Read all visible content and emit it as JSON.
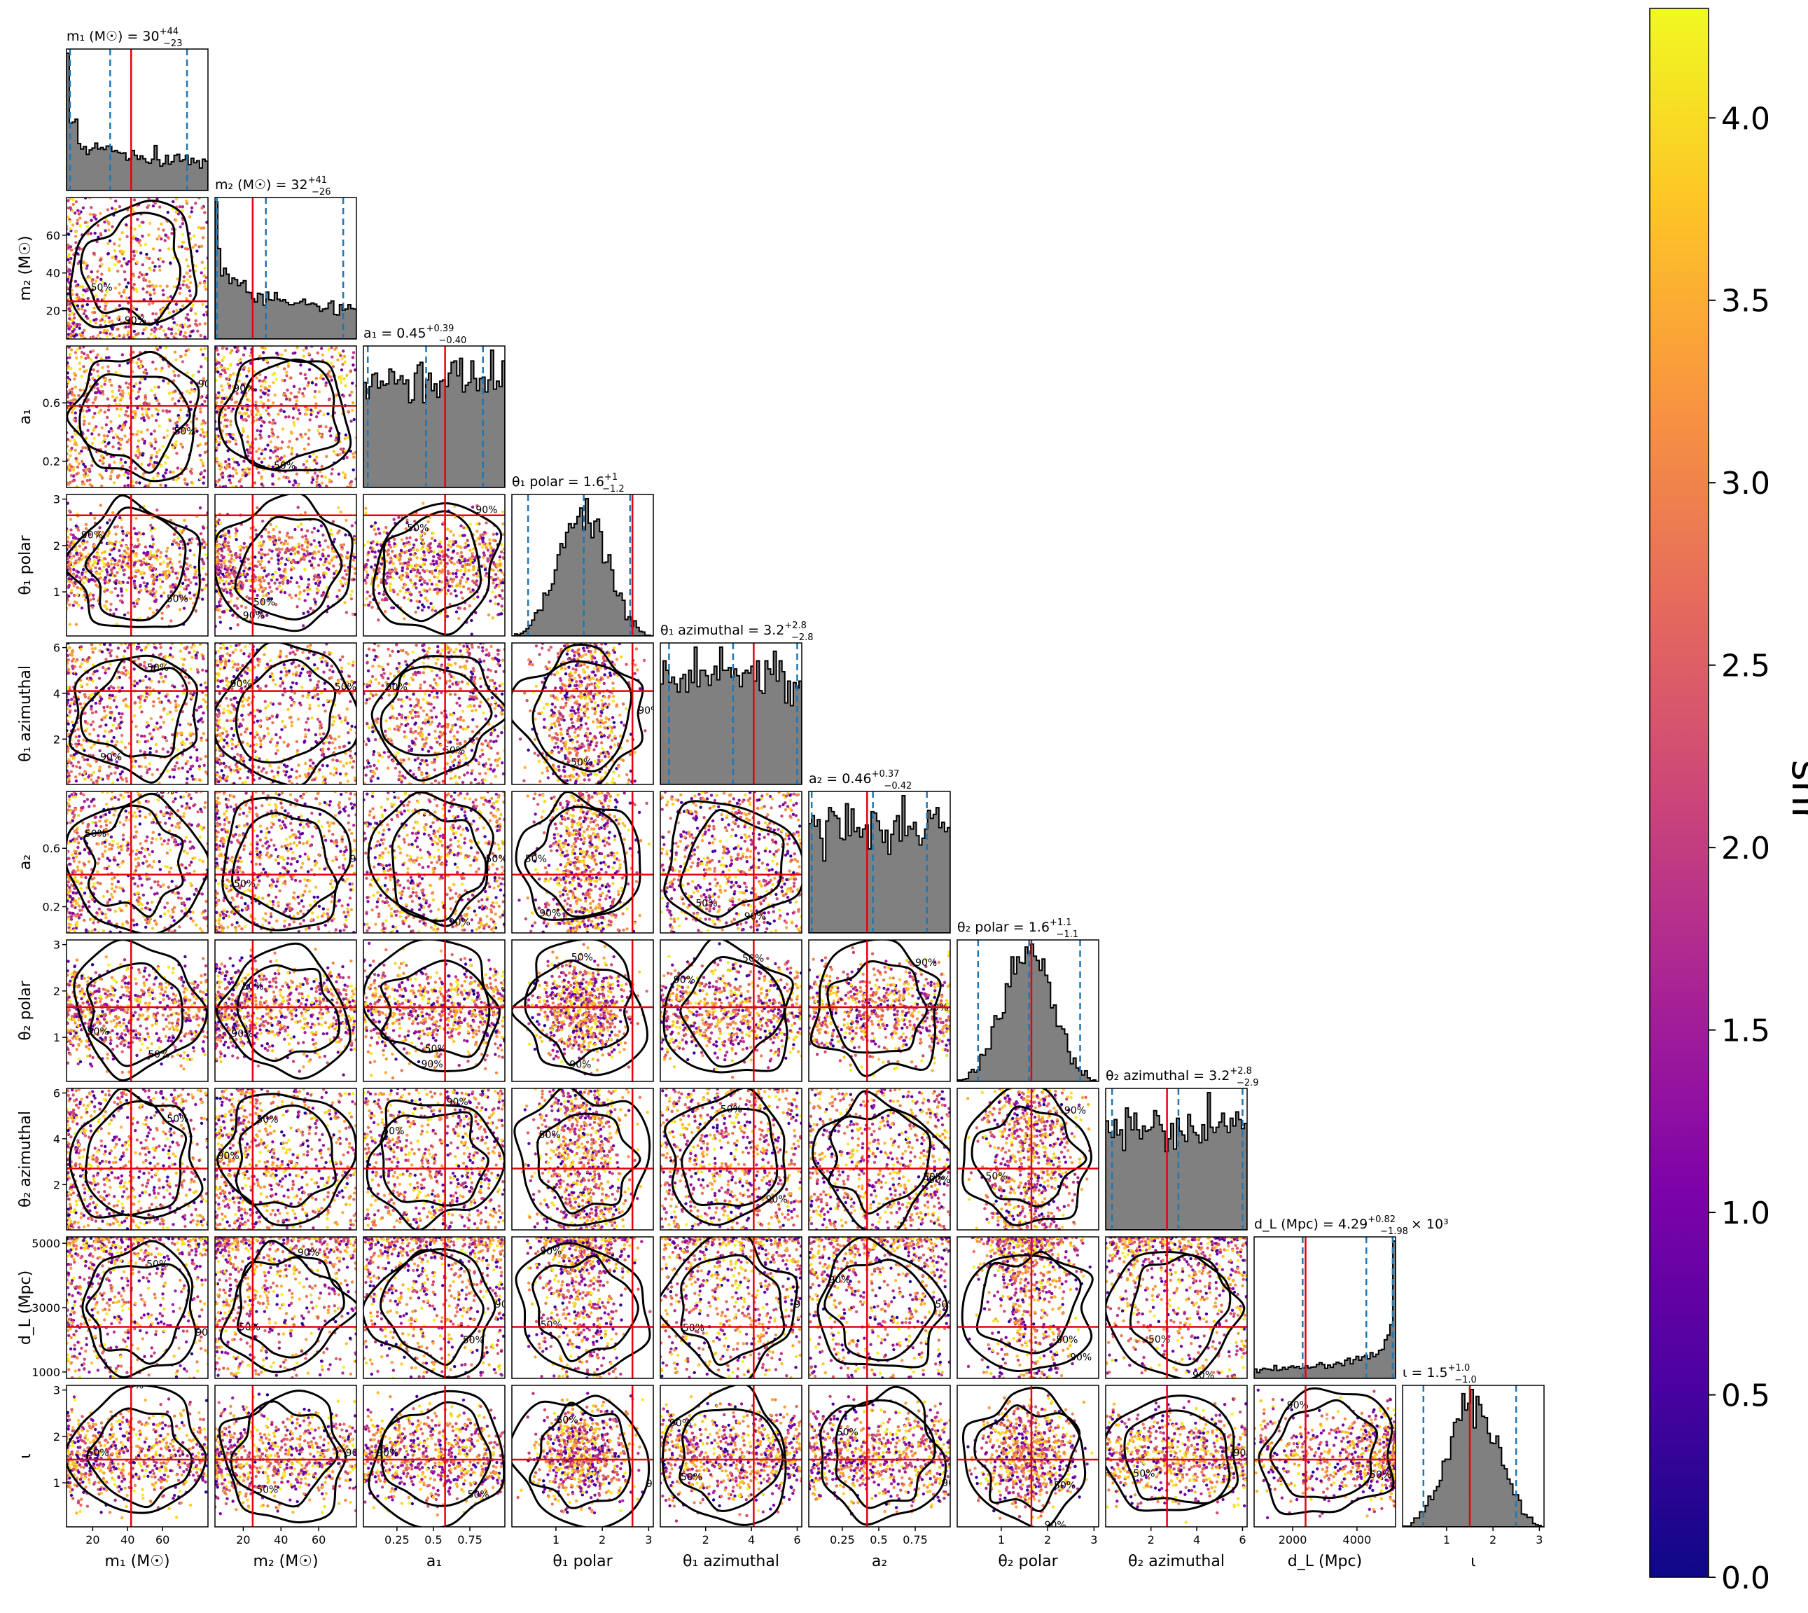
{
  "chart_data": {
    "type": "scatter",
    "layout": "corner",
    "params": [
      {
        "key": "m1",
        "label": "m₁ (M☉)",
        "range": [
          5,
          86
        ],
        "ticks": [
          20,
          40,
          60
        ],
        "truth": 42,
        "median": 30,
        "up": 44,
        "lo": 23,
        "title": "m₁ (M☉) = 30",
        "title_up": "+44",
        "title_lo": "−23",
        "hist_peak": "low",
        "contour_seed": 1
      },
      {
        "key": "m2",
        "label": "m₂ (M☉)",
        "range": [
          5,
          80
        ],
        "ticks": [
          20,
          40,
          60
        ],
        "truth": 25,
        "median": 32,
        "up": 41,
        "lo": 26,
        "title": "m₂ (M☉) = 32",
        "title_up": "+41",
        "title_lo": "−26",
        "hist_peak": "low",
        "contour_seed": 2
      },
      {
        "key": "a1",
        "label": "a₁",
        "range": [
          0.02,
          0.99
        ],
        "ticks": [
          0.2,
          0.6
        ],
        "xticks": [
          0.25,
          0.5,
          0.75
        ],
        "truth": 0.58,
        "median": 0.45,
        "up": 0.39,
        "lo": 0.4,
        "title": "a₁ = 0.45",
        "title_up": "+0.39",
        "title_lo": "−0.40",
        "hist_peak": "flat",
        "contour_seed": 3
      },
      {
        "key": "t1p",
        "label": "θ₁ polar",
        "range": [
          0.05,
          3.1
        ],
        "ticks": [
          1,
          2,
          3
        ],
        "truth": 2.65,
        "median": 1.6,
        "up": 1,
        "lo": 1.2,
        "title": "θ₁ polar = 1.6",
        "title_up": "+1",
        "title_lo": "−1.2",
        "hist_peak": "mid",
        "contour_seed": 4
      },
      {
        "key": "t1a",
        "label": "θ₁ azimuthal",
        "range": [
          0.02,
          6.2
        ],
        "ticks": [
          2,
          4,
          6
        ],
        "truth": 4.1,
        "median": 3.2,
        "up": 2.8,
        "lo": 2.8,
        "title": "θ₁ azimuthal = 3.2",
        "title_up": "+2.8",
        "title_lo": "−2.8",
        "hist_peak": "flat",
        "contour_seed": 5
      },
      {
        "key": "a2",
        "label": "a₂",
        "range": [
          0.02,
          0.99
        ],
        "ticks": [
          0.2,
          0.6
        ],
        "xticks": [
          0.25,
          0.5,
          0.75
        ],
        "truth": 0.42,
        "median": 0.46,
        "up": 0.37,
        "lo": 0.42,
        "title": "a₂ = 0.46",
        "title_up": "+0.37",
        "title_lo": "−0.42",
        "hist_peak": "flat",
        "contour_seed": 6
      },
      {
        "key": "t2p",
        "label": "θ₂ polar",
        "range": [
          0.05,
          3.1
        ],
        "ticks": [
          1,
          2,
          3
        ],
        "truth": 1.65,
        "median": 1.6,
        "up": 1.1,
        "lo": 1.1,
        "title": "θ₂ polar = 1.6",
        "title_up": "+1.1",
        "title_lo": "−1.1",
        "hist_peak": "mid",
        "contour_seed": 7
      },
      {
        "key": "t2a",
        "label": "θ₂ azimuthal",
        "range": [
          0.02,
          6.2
        ],
        "ticks": [
          2,
          4,
          6
        ],
        "truth": 2.7,
        "median": 3.2,
        "up": 2.8,
        "lo": 2.9,
        "title": "θ₂ azimuthal = 3.2",
        "title_up": "+2.8",
        "title_lo": "−2.9",
        "hist_peak": "flat",
        "contour_seed": 8
      },
      {
        "key": "dl",
        "label": "d_L (Mpc)",
        "range": [
          800,
          5200
        ],
        "ticks": [
          1000,
          3000,
          5000
        ],
        "xticks": [
          2000,
          4000
        ],
        "truth": 2400,
        "median": 4290,
        "up": 820,
        "lo": 1980,
        "title": "d_L (Mpc) = 4.29",
        "title_up": "+0.82",
        "title_lo": "−1.98",
        "title_suffix": "× 10³",
        "hist_peak": "high",
        "contour_seed": 9
      },
      {
        "key": "iota",
        "label": "ι",
        "range": [
          0.05,
          3.1
        ],
        "ticks": [
          1,
          2,
          3
        ],
        "truth": 1.5,
        "median": 1.5,
        "up": 1.0,
        "lo": 1.0,
        "title": "ι = 1.5",
        "title_up": "+1.0",
        "title_lo": "−1.0",
        "hist_peak": "mid",
        "contour_seed": 10
      }
    ],
    "contour_labels": [
      "50%",
      "90%"
    ],
    "colorbar": {
      "label": "snr",
      "min": 0.0,
      "max": 4.3,
      "ticks": [
        "0.0",
        "0.5",
        "1.0",
        "1.5",
        "2.0",
        "2.5",
        "3.0",
        "3.5",
        "4.0"
      ],
      "tick_values": [
        0.0,
        0.5,
        1.0,
        1.5,
        2.0,
        2.5,
        3.0,
        3.5,
        4.0
      ],
      "colormap": "plasma"
    },
    "colors": {
      "hist_fill": "#808080",
      "hist_edge": "#000000",
      "truth_line": "#e8000b",
      "quantile_line": "#1f77b4",
      "contour": "#000000"
    }
  }
}
